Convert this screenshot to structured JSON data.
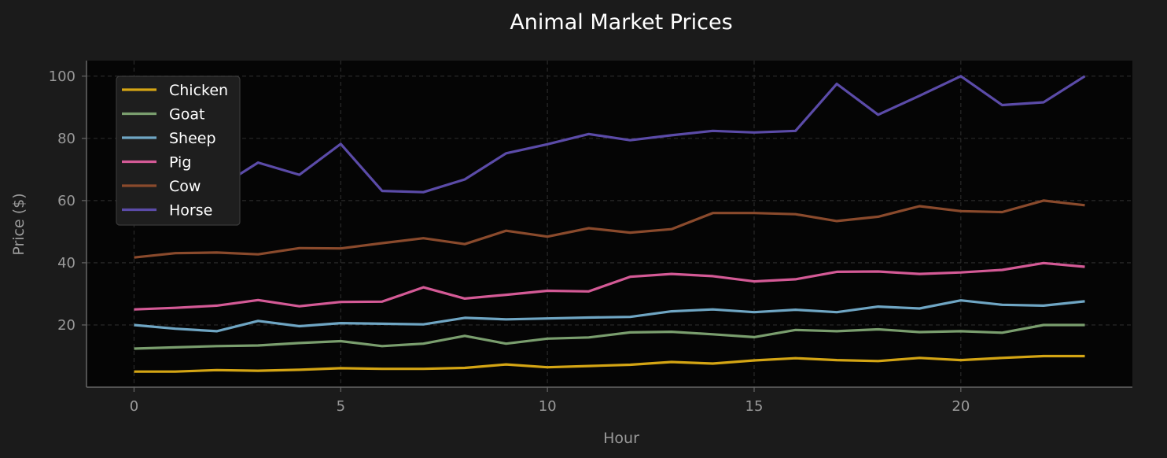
{
  "chart_data": {
    "type": "line",
    "title": "Animal Market Prices",
    "xlabel": "Hour",
    "ylabel": "Price ($)",
    "xlim": [
      -1.15,
      24.15
    ],
    "ylim": [
      0,
      105
    ],
    "xticks": [
      0,
      5,
      10,
      15,
      20
    ],
    "yticks": [
      20,
      40,
      60,
      80,
      100
    ],
    "grid": true,
    "legend_position": "top-left",
    "x": [
      0,
      1,
      2,
      3,
      4,
      5,
      6,
      7,
      8,
      9,
      10,
      11,
      12,
      13,
      14,
      15,
      16,
      17,
      18,
      19,
      20,
      21,
      22,
      23
    ],
    "series": [
      {
        "name": "Chicken",
        "color": "#d4a514",
        "values": [
          5.0,
          5.0,
          5.5,
          5.3,
          5.6,
          6.1,
          5.9,
          5.9,
          6.2,
          7.3,
          6.4,
          6.8,
          7.2,
          8.1,
          7.6,
          8.6,
          9.3,
          8.7,
          8.4,
          9.4,
          8.7,
          9.4,
          10.0,
          10.0
        ]
      },
      {
        "name": "Goat",
        "color": "#7a9e6e",
        "values": [
          12.4,
          12.8,
          13.2,
          13.4,
          14.2,
          14.8,
          13.2,
          14.0,
          16.5,
          14.0,
          15.6,
          16.0,
          17.6,
          17.8,
          17.0,
          16.1,
          18.4,
          18.0,
          18.6,
          17.7,
          18.0,
          17.5,
          20.0,
          20.0
        ]
      },
      {
        "name": "Sheep",
        "color": "#6fa6c4",
        "values": [
          20.0,
          18.8,
          18.0,
          21.3,
          19.6,
          20.6,
          20.4,
          20.2,
          22.3,
          21.8,
          22.1,
          22.4,
          22.6,
          24.4,
          25.0,
          24.1,
          24.9,
          24.1,
          25.9,
          25.3,
          27.9,
          26.5,
          26.2,
          27.6
        ]
      },
      {
        "name": "Pig",
        "color": "#d45a96",
        "values": [
          25.0,
          25.5,
          26.2,
          28.0,
          26.0,
          27.4,
          27.5,
          32.1,
          28.5,
          29.7,
          31.0,
          30.8,
          35.5,
          36.4,
          35.7,
          34.0,
          34.7,
          37.1,
          37.2,
          36.4,
          36.9,
          37.7,
          39.9,
          38.7
        ]
      },
      {
        "name": "Cow",
        "color": "#8a4a2c",
        "values": [
          41.7,
          43.1,
          43.3,
          42.7,
          44.7,
          44.6,
          46.3,
          47.9,
          46.0,
          50.3,
          48.4,
          51.1,
          49.7,
          50.8,
          56.0,
          56.0,
          55.6,
          53.4,
          54.8,
          58.2,
          56.6,
          56.3,
          60.0,
          58.5
        ]
      },
      {
        "name": "Horse",
        "color": "#5b4ba8",
        "values": [
          60.0,
          60.2,
          63.8,
          72.2,
          68.3,
          78.2,
          63.1,
          62.7,
          66.8,
          75.2,
          78.1,
          81.4,
          79.4,
          81.0,
          82.4,
          81.9,
          82.4,
          97.5,
          87.6,
          93.7,
          100.0,
          90.7,
          91.6,
          100.0
        ]
      }
    ]
  }
}
